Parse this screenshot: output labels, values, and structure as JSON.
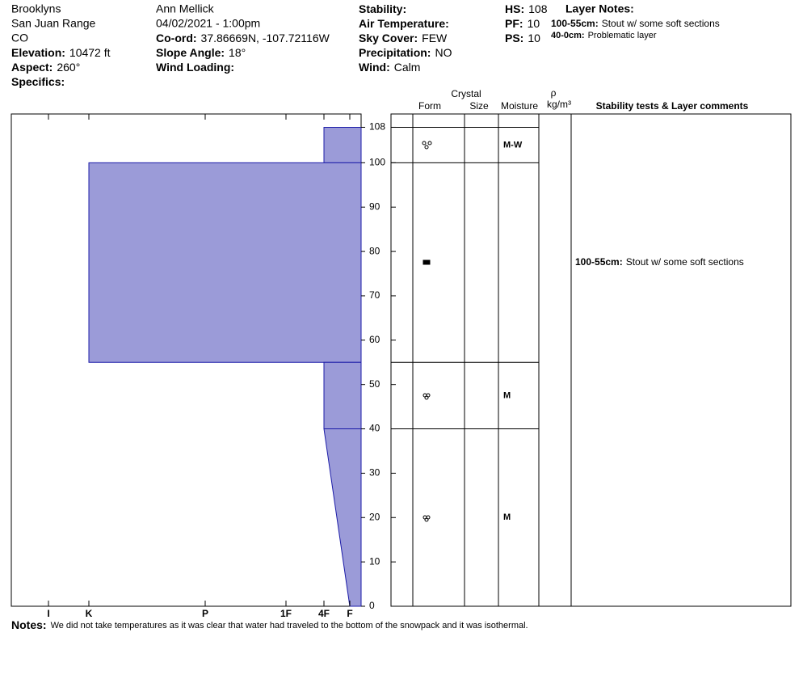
{
  "header": {
    "site": "Brooklyns",
    "range": "San Juan Range",
    "state": "CO",
    "elevation": {
      "label": "Elevation:",
      "value": "10472 ft"
    },
    "aspect": {
      "label": "Aspect:",
      "value": "260°"
    },
    "specifics": {
      "label": "Specifics:"
    },
    "observer": "Ann Mellick",
    "datetime": "04/02/2021 - 1:00pm",
    "coord": {
      "label": "Co-ord:",
      "value": "37.86669N, -107.72116W"
    },
    "slope_angle": {
      "label": "Slope Angle:",
      "value": "18°"
    },
    "wind_loading": {
      "label": "Wind Loading:"
    },
    "stability": {
      "label": "Stability:"
    },
    "air_temperature": {
      "label": "Air Temperature:"
    },
    "sky_cover": {
      "label": "Sky Cover:",
      "value": "FEW"
    },
    "precipitation": {
      "label": "Precipitation:",
      "value": "NO"
    },
    "wind": {
      "label": "Wind:",
      "value": "Calm"
    },
    "hs": {
      "label": "HS:",
      "value": "108"
    },
    "pf": {
      "label": "PF:",
      "value": "10"
    },
    "ps": {
      "label": "PS:",
      "value": "10"
    },
    "layer_notes": {
      "label": "Layer Notes:",
      "items": [
        {
          "range": "100-55cm:",
          "text": "Stout w/ some soft sections"
        },
        {
          "range": "40-0cm:",
          "text": "Problematic layer"
        }
      ]
    }
  },
  "notes": {
    "label": "Notes:",
    "text": "We did not take temperatures as it was clear that water had traveled to the bottom of the snowpack and it was isothermal."
  },
  "table_header": {
    "crystal": "Crystal",
    "form": "Form",
    "size": "Size",
    "moisture": "Moisture",
    "density_symbol": "ρ",
    "density_unit": "kg/m³",
    "comments": "Stability tests & Layer comments"
  },
  "chart_data": {
    "type": "snow-profile",
    "ylim": [
      0,
      111
    ],
    "yticks": [
      0,
      10,
      20,
      30,
      40,
      50,
      60,
      70,
      80,
      90,
      100,
      108
    ],
    "xlim": [
      7,
      0
    ],
    "xticks": [
      {
        "value": 6,
        "label": "I"
      },
      {
        "value": 5,
        "label": "K"
      },
      {
        "value": 4,
        "label": "P"
      },
      {
        "value": 3,
        "label": "1F"
      },
      {
        "value": 2,
        "label": "4F"
      },
      {
        "value": 1,
        "label": "F"
      }
    ],
    "color": "#9b9bd8",
    "edge_color": "#1c1ca8",
    "layers": [
      {
        "top": 108,
        "bottom": 100,
        "hardness_top": 2,
        "hardness_bottom": 2,
        "moisture": "M-W"
      },
      {
        "top": 100,
        "bottom": 55,
        "hardness_top": 5,
        "hardness_bottom": 5,
        "moisture": null,
        "comment": {
          "range": "100-55cm:",
          "text": "Stout w/ some soft sections"
        }
      },
      {
        "top": 55,
        "bottom": 40,
        "hardness_top": 2,
        "hardness_bottom": 2,
        "moisture": "M"
      },
      {
        "top": 40,
        "bottom": 0,
        "hardness_top": 2,
        "hardness_bottom": 1,
        "moisture": "M"
      }
    ]
  }
}
